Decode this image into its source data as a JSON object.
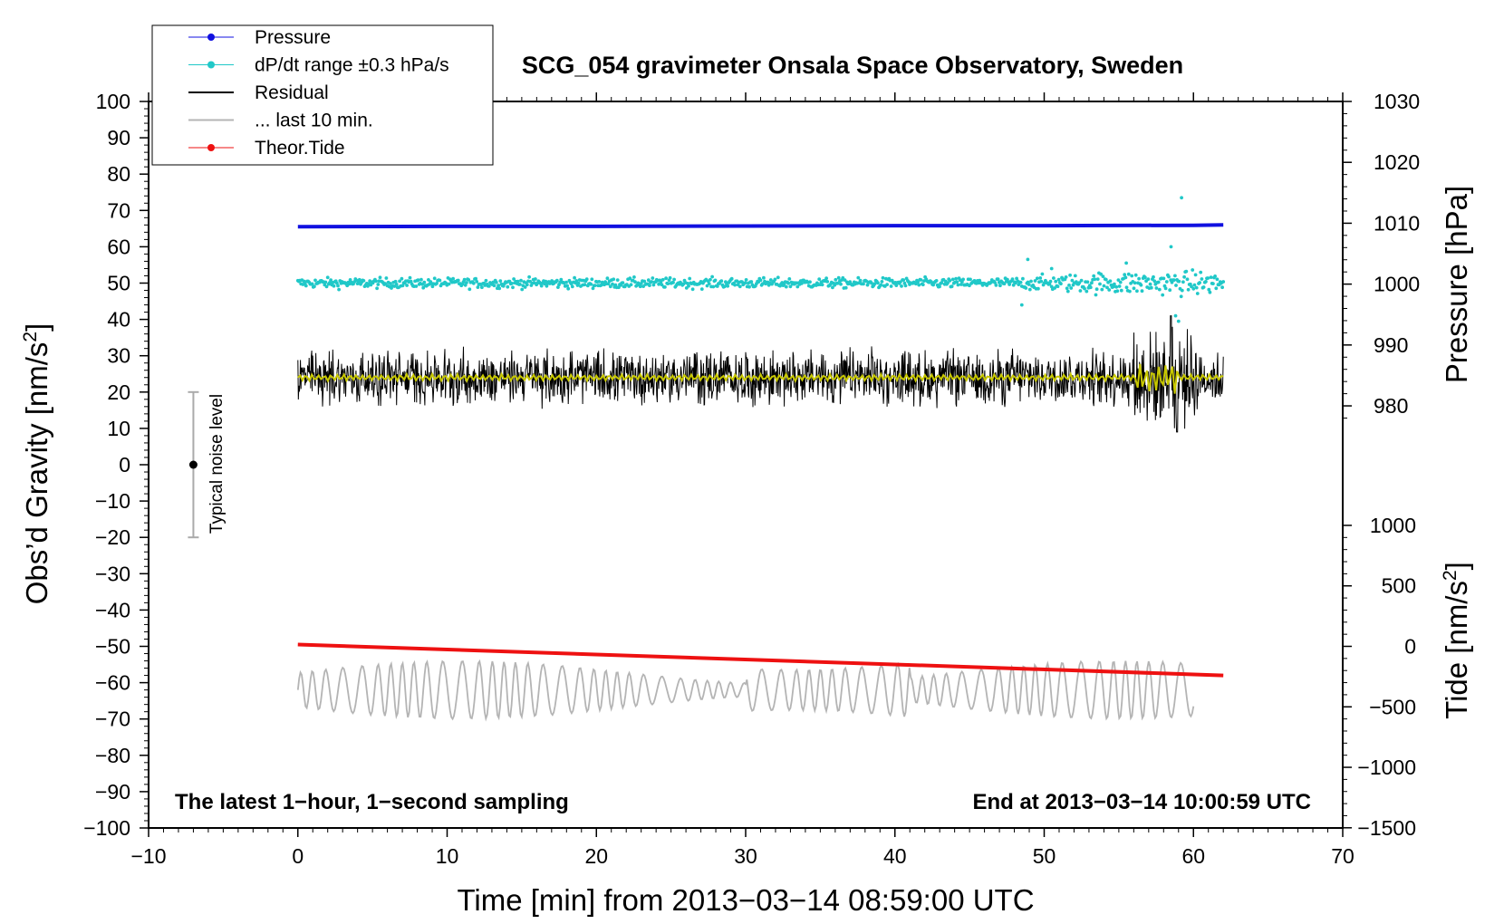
{
  "chart_data": {
    "type": "line",
    "title": "SCG_054 gravimeter Onsala Space Observatory, Sweden",
    "xlabel": "Time [min] from 2013−03−14 08:59:00 UTC",
    "ylabel": "Obs’d Gravity [nm/s",
    "ylabel_sup": "2",
    "ylabel_close": "]",
    "y2label": "Pressure [hPa]",
    "y3label": "Tide [nm/s",
    "y3label_sup": "2",
    "y3label_close": "]",
    "xlim": [
      -10,
      70
    ],
    "ylim": [
      -100,
      100
    ],
    "x_ticks": [
      "−10",
      "0",
      "10",
      "20",
      "30",
      "40",
      "50",
      "60",
      "70"
    ],
    "y_ticks": [
      "100",
      "90",
      "80",
      "70",
      "60",
      "50",
      "40",
      "30",
      "20",
      "10",
      "0",
      "−10",
      "−20",
      "−30",
      "−40",
      "−50",
      "−60",
      "−70",
      "−80",
      "−90",
      "−100"
    ],
    "pressure_ticks": [
      "1030",
      "1020",
      "1010",
      "1000",
      "990",
      "980"
    ],
    "tide_ticks": [
      "1000",
      "500",
      "0",
      "−500",
      "−1000",
      "−1500"
    ],
    "grid": false,
    "legend_position": "top-left",
    "legend": [
      "Pressure",
      "dP/dt range ±0.3 hPa/s",
      "Residual",
      "... last 10 min.",
      "Theor.Tide"
    ],
    "annotations": {
      "bottom_left": "The latest 1−hour, 1−second sampling",
      "bottom_right": "End at 2013−03−14 10:00:59 UTC",
      "noise": "Typical noise level"
    },
    "noise_bar": {
      "x": -7,
      "y": 0,
      "low": -20,
      "high": 20
    },
    "series": [
      {
        "name": "Pressure",
        "color": "#1010e0",
        "x": [
          0,
          10,
          20,
          30,
          40,
          50,
          60,
          62
        ],
        "y": [
          65.5,
          65.6,
          65.6,
          65.7,
          65.8,
          65.8,
          65.9,
          66.0
        ]
      },
      {
        "name": "dP/dt range ±0.3 hPa/s",
        "color": "#20c8c8",
        "center": 50.0,
        "spread_early": 1.5,
        "spread_late": 3.5,
        "outliers": [
          [
            48.9,
            56.5
          ],
          [
            50.5,
            54.0
          ],
          [
            55.5,
            55.5
          ],
          [
            58.5,
            60.0
          ],
          [
            59.2,
            73.5
          ],
          [
            48.5,
            44.0
          ],
          [
            58.8,
            41.0
          ],
          [
            59.0,
            39.5
          ]
        ]
      },
      {
        "name": "Residual",
        "color": "#000000",
        "center": 24.0,
        "amplitude": 9.0,
        "x_range": [
          0,
          62
        ],
        "peak_x": 58.5,
        "peak_range": [
          9,
          41
        ]
      },
      {
        "name": "Residual (smoothed)",
        "color": "#c8c800",
        "center": 24.0,
        "amplitude": 1.0,
        "x_range": [
          0,
          62
        ]
      },
      {
        "name": "... last 10 min.",
        "color": "#b4b4b4",
        "center": -62.0,
        "amplitude": 8.0,
        "x_range": [
          0,
          60
        ],
        "min": -77,
        "max": -45
      },
      {
        "name": "Theor.Tide",
        "color": "#ee1111",
        "x": [
          0,
          62
        ],
        "y": [
          -49.5,
          -58.0
        ]
      }
    ]
  },
  "colors": {
    "pressure": "#1010e0",
    "dpdt": "#20c8c8",
    "residual": "#000000",
    "smoothed": "#c8c800",
    "last10": "#b4b4b4",
    "tide": "#ee1111"
  }
}
